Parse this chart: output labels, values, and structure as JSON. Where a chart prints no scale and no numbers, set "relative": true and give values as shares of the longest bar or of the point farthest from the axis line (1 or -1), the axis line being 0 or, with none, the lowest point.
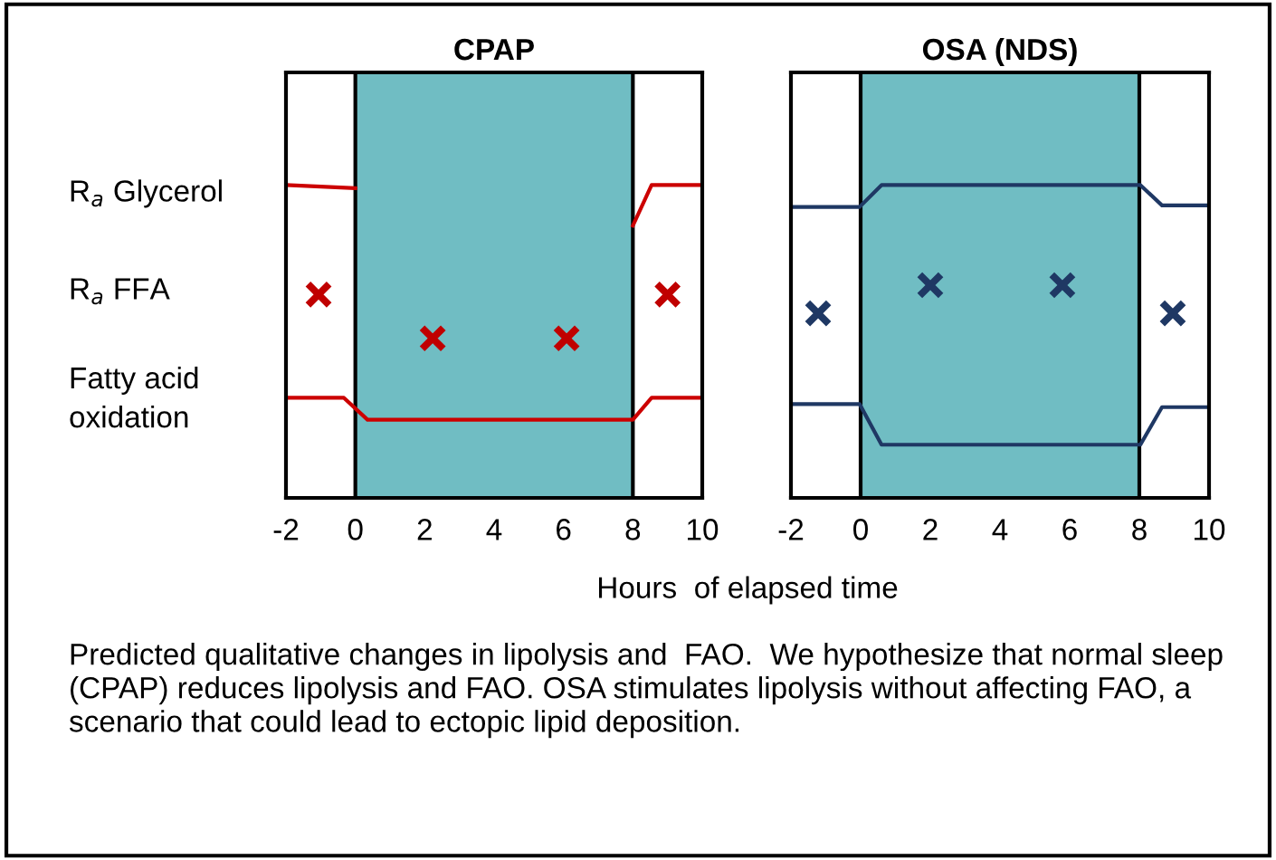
{
  "chart_data": [
    {
      "type": "line",
      "title": "CPAP",
      "relative": true,
      "xlim": [
        -2,
        10
      ],
      "xticks": [
        -2,
        0,
        2,
        4,
        6,
        8,
        10
      ],
      "tick_labels": "x",
      "grid": false,
      "xlabel": "Hours  of elapsed time",
      "annotations": [
        "R$_{a}$ Glycerol",
        "R$_{a}$ FFA",
        "Fatty acid\noxidation",
        "Predicted qualitative changes in lipolysis and  FAO.  We hypothesize that normal sleep (CPAP) reduces lipolysis and FAO. OSA stimulates lipolysis without affecting FAO, a scenario that could lead to ectopic lipid deposition."
      ],
      "bands": [
        {
          "axis": "x",
          "from": 0,
          "to": 8,
          "color": "#70bdc3"
        }
      ],
      "series": [
        {
          "color": "#cc0000",
          "marker": "none",
          "line_style": "solid",
          "x": [
            -2,
            0,
            4,
            8,
            8.54,
            9.9
          ],
          "values": [
            1,
            0.99,
            null,
            0.87,
            1,
            1
          ]
        },
        {
          "color": "#cc0000",
          "marker": "none",
          "line_style": "solid",
          "x": [
            -2,
            -0.33,
            0.35,
            8,
            8.54,
            9.9
          ],
          "values": [
            0.32,
            0.32,
            0.25,
            0.25,
            0.32,
            0.32
          ]
        },
        {
          "type": "scatter",
          "color": "#c00000",
          "marker": "cross",
          "x": [
            -1.06,
            2.23,
            6.09,
            9.0
          ],
          "values": [
            0.65,
            0.51,
            0.51,
            0.65
          ]
        }
      ]
    },
    {
      "type": "line",
      "title": "OSA (NDS)",
      "relative": true,
      "xlim": [
        -2,
        10
      ],
      "xticks": [
        -2,
        0,
        2,
        4,
        6,
        8,
        10
      ],
      "tick_labels": "x",
      "grid": false,
      "bands": [
        {
          "axis": "x",
          "from": 0,
          "to": 8,
          "color": "#70bdc3"
        }
      ],
      "series": [
        {
          "color": "#1f3864",
          "marker": "none",
          "line_style": "solid",
          "x": [
            -2,
            -0.03,
            0.6,
            8.03,
            8.65,
            9.95
          ],
          "values": [
            0.93,
            0.93,
            1,
            1,
            0.935,
            0.935
          ]
        },
        {
          "color": "#1f3864",
          "marker": "none",
          "line_style": "solid",
          "x": [
            -2,
            -0.03,
            0.6,
            8.03,
            8.65,
            9.95
          ],
          "values": [
            0.3,
            0.3,
            0.17,
            0.17,
            0.29,
            0.29
          ]
        },
        {
          "type": "scatter",
          "color": "#1f3864",
          "marker": "cross",
          "x": [
            -1.22,
            2.0,
            5.79,
            8.96
          ],
          "values": [
            0.59,
            0.68,
            0.68,
            0.59
          ]
        }
      ]
    }
  ]
}
